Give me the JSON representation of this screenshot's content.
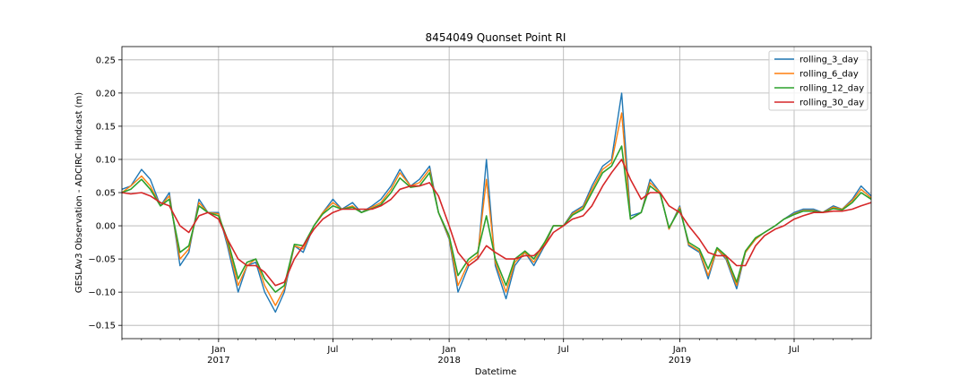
{
  "chart_data": {
    "type": "line",
    "title": "8454049 Quonset Point RI",
    "xlabel": "Datetime",
    "ylabel": "GESLAv3 Observation - ADCIRC Hindcast (m)",
    "xlim": [
      "2016-08-01",
      "2019-10-31"
    ],
    "ylim": [
      -0.17,
      0.27
    ],
    "grid": true,
    "legend_position": "top-right",
    "yticks": [
      {
        "value": -0.15,
        "label": "−0.15"
      },
      {
        "value": -0.1,
        "label": "−0.10"
      },
      {
        "value": -0.05,
        "label": "−0.05"
      },
      {
        "value": 0.0,
        "label": "0.00"
      },
      {
        "value": 0.05,
        "label": "0.05"
      },
      {
        "value": 0.1,
        "label": "0.10"
      },
      {
        "value": 0.15,
        "label": "0.15"
      },
      {
        "value": 0.2,
        "label": "0.20"
      },
      {
        "value": 0.25,
        "label": "0.25"
      }
    ],
    "xticks_major": [
      {
        "date": "2017-01-01",
        "label": "Jan",
        "sublabel": "2017"
      },
      {
        "date": "2017-07-01",
        "label": "Jul",
        "sublabel": ""
      },
      {
        "date": "2018-01-01",
        "label": "Jan",
        "sublabel": "2018"
      },
      {
        "date": "2018-07-01",
        "label": "Jul",
        "sublabel": ""
      },
      {
        "date": "2019-01-01",
        "label": "Jan",
        "sublabel": "2019"
      },
      {
        "date": "2019-07-01",
        "label": "Jul",
        "sublabel": ""
      }
    ],
    "x": [
      "2016-08-01",
      "2016-08-15",
      "2016-09-01",
      "2016-09-15",
      "2016-10-01",
      "2016-10-15",
      "2016-11-01",
      "2016-11-15",
      "2016-12-01",
      "2016-12-15",
      "2017-01-01",
      "2017-01-15",
      "2017-02-01",
      "2017-02-15",
      "2017-03-01",
      "2017-03-15",
      "2017-04-01",
      "2017-04-15",
      "2017-05-01",
      "2017-05-15",
      "2017-06-01",
      "2017-06-15",
      "2017-07-01",
      "2017-07-15",
      "2017-08-01",
      "2017-08-15",
      "2017-09-01",
      "2017-09-15",
      "2017-10-01",
      "2017-10-15",
      "2017-11-01",
      "2017-11-15",
      "2017-12-01",
      "2017-12-15",
      "2018-01-01",
      "2018-01-15",
      "2018-02-01",
      "2018-02-15",
      "2018-03-01",
      "2018-03-15",
      "2018-04-01",
      "2018-04-15",
      "2018-05-01",
      "2018-05-15",
      "2018-06-01",
      "2018-06-15",
      "2018-07-01",
      "2018-07-15",
      "2018-08-01",
      "2018-08-15",
      "2018-09-01",
      "2018-09-15",
      "2018-10-01",
      "2018-10-15",
      "2018-11-01",
      "2018-11-15",
      "2018-12-01",
      "2018-12-15",
      "2019-01-01",
      "2019-01-15",
      "2019-02-01",
      "2019-02-15",
      "2019-03-01",
      "2019-03-15",
      "2019-04-01",
      "2019-04-15",
      "2019-05-01",
      "2019-05-15",
      "2019-06-01",
      "2019-06-15",
      "2019-07-01",
      "2019-07-15",
      "2019-08-01",
      "2019-08-15",
      "2019-09-01",
      "2019-09-15",
      "2019-10-01",
      "2019-10-15",
      "2019-10-31"
    ],
    "series": [
      {
        "name": "rolling_3_day",
        "color": "#1f77b4",
        "values": [
          0.055,
          0.06,
          0.085,
          0.07,
          0.03,
          0.05,
          -0.06,
          -0.04,
          0.04,
          0.02,
          0.02,
          -0.03,
          -0.1,
          -0.06,
          -0.055,
          -0.1,
          -0.13,
          -0.1,
          -0.03,
          -0.04,
          0.0,
          0.02,
          0.04,
          0.025,
          0.035,
          0.02,
          0.03,
          0.04,
          0.06,
          0.085,
          0.06,
          0.07,
          0.09,
          0.02,
          -0.02,
          -0.1,
          -0.06,
          -0.05,
          0.1,
          -0.06,
          -0.11,
          -0.06,
          -0.04,
          -0.06,
          -0.03,
          0.0,
          0.0,
          0.02,
          0.03,
          0.06,
          0.09,
          0.1,
          0.2,
          0.015,
          0.02,
          0.07,
          0.05,
          -0.005,
          0.03,
          -0.03,
          -0.04,
          -0.08,
          -0.035,
          -0.05,
          -0.095,
          -0.04,
          -0.02,
          -0.01,
          0.0,
          0.01,
          0.02,
          0.025,
          0.025,
          0.02,
          0.03,
          0.025,
          0.04,
          0.06,
          0.045
        ]
      },
      {
        "name": "rolling_6_day",
        "color": "#ff7f0e",
        "values": [
          0.05,
          0.06,
          0.075,
          0.06,
          0.03,
          0.045,
          -0.05,
          -0.035,
          0.035,
          0.02,
          0.018,
          -0.025,
          -0.09,
          -0.06,
          -0.05,
          -0.09,
          -0.12,
          -0.095,
          -0.03,
          -0.035,
          0.0,
          0.02,
          0.035,
          0.025,
          0.03,
          0.02,
          0.028,
          0.035,
          0.055,
          0.08,
          0.06,
          0.065,
          0.085,
          0.02,
          -0.018,
          -0.09,
          -0.055,
          -0.045,
          0.07,
          -0.055,
          -0.1,
          -0.055,
          -0.04,
          -0.055,
          -0.028,
          0.0,
          0.0,
          0.018,
          0.028,
          0.055,
          0.085,
          0.095,
          0.17,
          0.01,
          0.02,
          0.065,
          0.05,
          -0.005,
          0.028,
          -0.028,
          -0.038,
          -0.075,
          -0.035,
          -0.048,
          -0.09,
          -0.04,
          -0.02,
          -0.01,
          0.0,
          0.01,
          0.018,
          0.023,
          0.023,
          0.02,
          0.028,
          0.025,
          0.038,
          0.055,
          0.042
        ]
      },
      {
        "name": "rolling_12_day",
        "color": "#2ca02c",
        "values": [
          0.05,
          0.055,
          0.07,
          0.055,
          0.03,
          0.04,
          -0.04,
          -0.03,
          0.03,
          0.02,
          0.015,
          -0.02,
          -0.08,
          -0.055,
          -0.05,
          -0.08,
          -0.1,
          -0.09,
          -0.028,
          -0.03,
          0.0,
          0.018,
          0.03,
          0.025,
          0.028,
          0.02,
          0.026,
          0.032,
          0.05,
          0.072,
          0.058,
          0.06,
          0.08,
          0.02,
          -0.015,
          -0.075,
          -0.05,
          -0.04,
          0.015,
          -0.05,
          -0.09,
          -0.05,
          -0.038,
          -0.05,
          -0.025,
          0.0,
          0.0,
          0.016,
          0.025,
          0.05,
          0.08,
          0.09,
          0.12,
          0.01,
          0.02,
          0.06,
          0.048,
          -0.003,
          0.025,
          -0.025,
          -0.035,
          -0.065,
          -0.033,
          -0.045,
          -0.085,
          -0.038,
          -0.018,
          -0.01,
          0.0,
          0.01,
          0.017,
          0.022,
          0.022,
          0.02,
          0.026,
          0.024,
          0.035,
          0.05,
          0.04
        ]
      },
      {
        "name": "rolling_30_day",
        "color": "#d62728",
        "values": [
          0.05,
          0.048,
          0.05,
          0.045,
          0.035,
          0.03,
          0.0,
          -0.01,
          0.015,
          0.02,
          0.01,
          -0.02,
          -0.05,
          -0.06,
          -0.06,
          -0.07,
          -0.09,
          -0.085,
          -0.05,
          -0.03,
          -0.005,
          0.01,
          0.02,
          0.025,
          0.025,
          0.025,
          0.025,
          0.03,
          0.04,
          0.055,
          0.06,
          0.06,
          0.065,
          0.045,
          0.0,
          -0.04,
          -0.06,
          -0.05,
          -0.03,
          -0.04,
          -0.05,
          -0.05,
          -0.045,
          -0.045,
          -0.03,
          -0.01,
          0.0,
          0.01,
          0.015,
          0.03,
          0.06,
          0.08,
          0.1,
          0.07,
          0.04,
          0.05,
          0.05,
          0.03,
          0.02,
          0.0,
          -0.02,
          -0.04,
          -0.045,
          -0.045,
          -0.06,
          -0.06,
          -0.03,
          -0.015,
          -0.005,
          0.0,
          0.01,
          0.015,
          0.02,
          0.02,
          0.022,
          0.022,
          0.025,
          0.03,
          0.035
        ]
      }
    ]
  }
}
